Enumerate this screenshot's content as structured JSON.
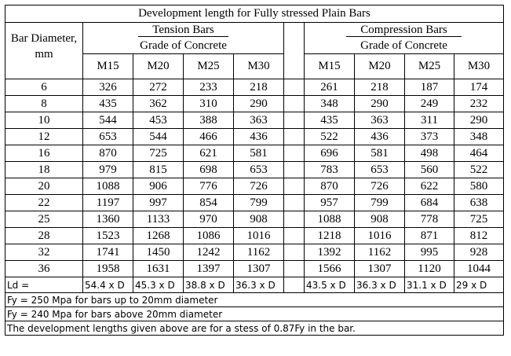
{
  "title": "Development length for Fully stressed Plain Bars",
  "bar_diameter_label": "Bar Diameter,",
  "bar_diameter_unit": "mm",
  "tension": {
    "label": "Tension Bars",
    "grade_label": "Grade of Concrete",
    "grades": [
      "M15",
      "M20",
      "M25",
      "M30"
    ]
  },
  "compression": {
    "label": "Compression Bars",
    "grade_label": "Grade of Concrete",
    "grades": [
      "M15",
      "M20",
      "M25",
      "M30"
    ]
  },
  "rows": [
    {
      "dia": "6",
      "t": [
        "326",
        "272",
        "233",
        "218"
      ],
      "c": [
        "261",
        "218",
        "187",
        "174"
      ]
    },
    {
      "dia": "8",
      "t": [
        "435",
        "362",
        "310",
        "290"
      ],
      "c": [
        "348",
        "290",
        "249",
        "232"
      ]
    },
    {
      "dia": "10",
      "t": [
        "544",
        "453",
        "388",
        "363"
      ],
      "c": [
        "435",
        "363",
        "311",
        "290"
      ]
    },
    {
      "dia": "12",
      "t": [
        "653",
        "544",
        "466",
        "436"
      ],
      "c": [
        "522",
        "436",
        "373",
        "348"
      ]
    },
    {
      "dia": "16",
      "t": [
        "870",
        "725",
        "621",
        "581"
      ],
      "c": [
        "696",
        "581",
        "498",
        "464"
      ]
    },
    {
      "dia": "18",
      "t": [
        "979",
        "815",
        "698",
        "653"
      ],
      "c": [
        "783",
        "653",
        "560",
        "522"
      ]
    },
    {
      "dia": "20",
      "t": [
        "1088",
        "906",
        "776",
        "726"
      ],
      "c": [
        "870",
        "726",
        "622",
        "580"
      ]
    },
    {
      "dia": "22",
      "t": [
        "1197",
        "997",
        "854",
        "799"
      ],
      "c": [
        "957",
        "799",
        "684",
        "638"
      ]
    },
    {
      "dia": "25",
      "t": [
        "1360",
        "1133",
        "970",
        "908"
      ],
      "c": [
        "1088",
        "908",
        "778",
        "725"
      ]
    },
    {
      "dia": "28",
      "t": [
        "1523",
        "1268",
        "1086",
        "1016"
      ],
      "c": [
        "1218",
        "1016",
        "871",
        "812"
      ]
    },
    {
      "dia": "32",
      "t": [
        "1741",
        "1450",
        "1242",
        "1162"
      ],
      "c": [
        "1392",
        "1162",
        "995",
        "928"
      ]
    },
    {
      "dia": "36",
      "t": [
        "1958",
        "1631",
        "1397",
        "1307"
      ],
      "c": [
        "1566",
        "1307",
        "1120",
        "1044"
      ]
    }
  ],
  "ld_label": "Ld =",
  "ld_tension": [
    "54.4 x D",
    "45.3 x D",
    "38.8 x D",
    "36.3 x D"
  ],
  "ld_compression": [
    "43.5 x D",
    "36.3 x D",
    "31.1 x D",
    "29 x D"
  ],
  "notes": [
    "Fy = 250 Mpa for bars up to 20mm diameter",
    "Fy = 240 Mpa for bars above 20mm diameter",
    "The development lengths given above are for a stess of 0.87Fy in the bar."
  ]
}
